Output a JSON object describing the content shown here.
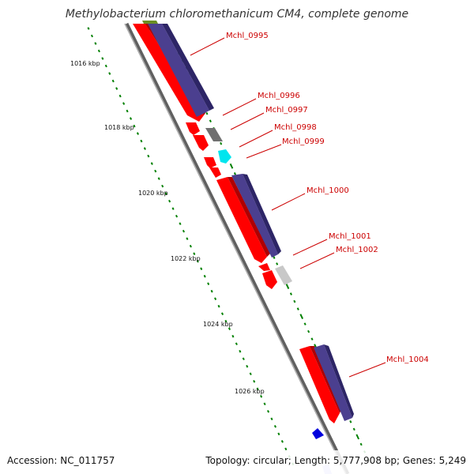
{
  "title": "Methylobacterium chloromethanicum CM4, complete genome",
  "footer": {
    "accession": "Accession: NC_011757",
    "topology": "Topology: circular; Length: 5,777,908 bp; Genes: 5,249"
  },
  "colors": {
    "cds": "#ff0000",
    "cds_dark": "#b00000",
    "feature_bar": "#4b3f8f",
    "feature_dark": "#2d2566",
    "rna_gray": "#707070",
    "light_gray": "#c8c8c8",
    "cyan": "#00e5ee",
    "blue_marker": "#0000dd",
    "tick_green": "#008000",
    "backbone": "#808080",
    "label_red": "#cc0000",
    "olive": "#6b8e23"
  },
  "axis": {
    "labels": [
      "1016 kbp",
      "1018 kbp",
      "1020 kbp",
      "1022 kbp",
      "1024 kbp",
      "1026 kbp"
    ]
  },
  "genes": [
    {
      "name": "Mchl_0995",
      "color": "cds"
    },
    {
      "name": "Mchl_0996",
      "color": "cds"
    },
    {
      "name": "Mchl_0997",
      "color": "rna_gray"
    },
    {
      "name": "Mchl_0998",
      "color": "cds"
    },
    {
      "name": "Mchl_0999",
      "color": "cyan"
    },
    {
      "name": "Mchl_1000",
      "color": "cds"
    },
    {
      "name": "Mchl_1001",
      "color": "cds"
    },
    {
      "name": "Mchl_1002",
      "color": "light_gray"
    },
    {
      "name": "Mchl_1004",
      "color": "cds"
    }
  ]
}
